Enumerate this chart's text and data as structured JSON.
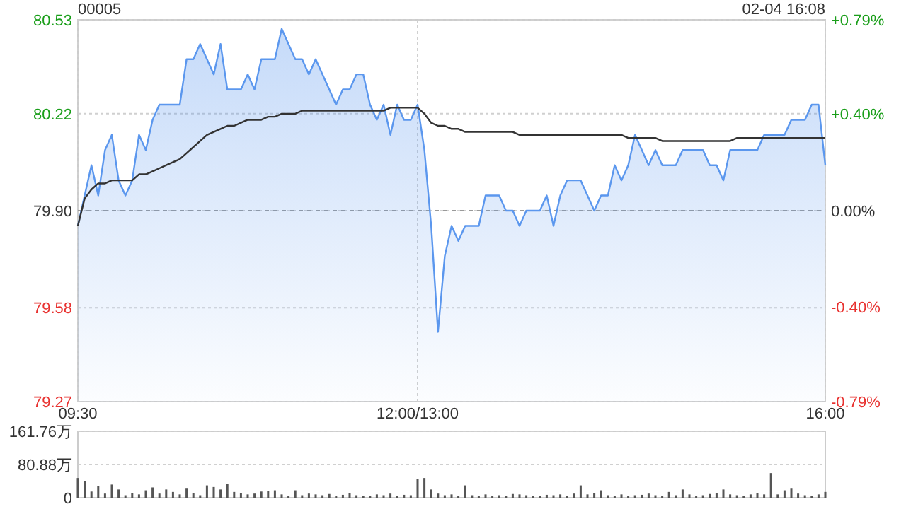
{
  "chart_data": [
    {
      "type": "area",
      "title": "00005",
      "annotations": [
        "02-04 16:08"
      ],
      "categories": [
        "09:30",
        null,
        null,
        null,
        null,
        null,
        null,
        null,
        null,
        null,
        null,
        null,
        null,
        null,
        null,
        null,
        null,
        null,
        null,
        null,
        null,
        null,
        null,
        null,
        null,
        null,
        null,
        null,
        null,
        null,
        null,
        null,
        null,
        null,
        null,
        null,
        null,
        null,
        null,
        null,
        null,
        null,
        null,
        null,
        null,
        null,
        null,
        null,
        null,
        null,
        "12:00/13:00",
        null,
        null,
        null,
        null,
        null,
        null,
        null,
        null,
        null,
        null,
        null,
        null,
        null,
        null,
        null,
        null,
        null,
        null,
        null,
        null,
        null,
        null,
        null,
        null,
        null,
        null,
        null,
        null,
        null,
        null,
        null,
        null,
        null,
        null,
        null,
        null,
        null,
        null,
        null,
        null,
        null,
        null,
        null,
        null,
        null,
        null,
        null,
        null,
        null,
        null,
        null,
        null,
        null,
        null,
        null,
        null,
        null,
        null,
        null,
        "16:00"
      ],
      "ylim": [
        79.27,
        80.53
      ],
      "yticks": [
        79.27,
        79.58,
        {
          "value": 79.9,
          "label": "79.90"
        },
        80.22,
        80.53
      ],
      "y2lim": [
        -0.79,
        0.79
      ],
      "y2ticks": [
        {
          "value": -0.79,
          "label": "-0.79%"
        },
        {
          "value": -0.4,
          "label": "-0.40%"
        },
        {
          "value": 0,
          "label": "0.00%"
        },
        {
          "value": 0.4,
          "label": "+0.40%"
        },
        {
          "value": 0.79,
          "label": "+0.79%"
        }
      ],
      "grid": true,
      "marker": "none",
      "ref_lines": [
        {
          "axis": "y",
          "value": 79.9,
          "color": "#999999",
          "line_style": "dashed"
        }
      ],
      "series": [
        {
          "color": "#5b97ee",
          "values": [
            79.85,
            79.95,
            80.05,
            79.95,
            80.1,
            80.15,
            80.0,
            79.95,
            80.0,
            80.15,
            80.1,
            80.2,
            80.25,
            80.25,
            80.25,
            80.25,
            80.4,
            80.4,
            80.45,
            80.4,
            80.35,
            80.45,
            80.3,
            80.3,
            80.3,
            80.35,
            80.3,
            80.4,
            80.4,
            80.4,
            80.5,
            80.45,
            80.4,
            80.4,
            80.35,
            80.4,
            80.35,
            80.3,
            80.25,
            80.3,
            80.3,
            80.35,
            80.35,
            80.25,
            80.2,
            80.25,
            80.15,
            80.25,
            80.2,
            80.2,
            80.25,
            80.1,
            79.85,
            79.5,
            79.75,
            79.85,
            79.8,
            79.85,
            79.85,
            79.85,
            79.95,
            79.95,
            79.95,
            79.9,
            79.9,
            79.85,
            79.9,
            79.9,
            79.9,
            79.95,
            79.85,
            79.95,
            80.0,
            80.0,
            80.0,
            79.95,
            79.9,
            79.95,
            79.95,
            80.05,
            80.0,
            80.05,
            80.15,
            80.1,
            80.05,
            80.1,
            80.05,
            80.05,
            80.05,
            80.1,
            80.1,
            80.1,
            80.1,
            80.05,
            80.05,
            80.0,
            80.1,
            80.1,
            80.1,
            80.1,
            80.1,
            80.15,
            80.15,
            80.15,
            80.15,
            80.2,
            80.2,
            80.2,
            80.25,
            80.25,
            80.05
          ]
        },
        {
          "type": "line",
          "color": "#333333",
          "values": [
            79.85,
            79.94,
            79.97,
            79.99,
            79.99,
            80.0,
            80.0,
            80.0,
            80.0,
            80.02,
            80.02,
            80.03,
            80.04,
            80.05,
            80.06,
            80.07,
            80.09,
            80.11,
            80.13,
            80.15,
            80.16,
            80.17,
            80.18,
            80.18,
            80.19,
            80.2,
            80.2,
            80.2,
            80.21,
            80.21,
            80.22,
            80.22,
            80.22,
            80.23,
            80.23,
            80.23,
            80.23,
            80.23,
            80.23,
            80.23,
            80.23,
            80.23,
            80.23,
            80.23,
            80.23,
            80.23,
            80.24,
            80.24,
            80.24,
            80.24,
            80.24,
            80.22,
            80.19,
            80.18,
            80.18,
            80.17,
            80.17,
            80.16,
            80.16,
            80.16,
            80.16,
            80.16,
            80.16,
            80.16,
            80.16,
            80.15,
            80.15,
            80.15,
            80.15,
            80.15,
            80.15,
            80.15,
            80.15,
            80.15,
            80.15,
            80.15,
            80.15,
            80.15,
            80.15,
            80.15,
            80.15,
            80.14,
            80.14,
            80.14,
            80.14,
            80.14,
            80.13,
            80.13,
            80.13,
            80.13,
            80.13,
            80.13,
            80.13,
            80.13,
            80.13,
            80.13,
            80.13,
            80.14,
            80.14,
            80.14,
            80.14,
            80.14,
            80.14,
            80.14,
            80.14,
            80.14,
            80.14,
            80.14,
            80.14,
            80.14,
            80.14
          ]
        }
      ]
    },
    {
      "type": "bar",
      "categories": [
        null,
        null,
        null,
        null,
        null,
        null,
        null,
        null,
        null,
        null,
        null,
        null,
        null,
        null,
        null,
        null,
        null,
        null,
        null,
        null,
        null,
        null,
        null,
        null,
        null,
        null,
        null,
        null,
        null,
        null,
        null,
        null,
        null,
        null,
        null,
        null,
        null,
        null,
        null,
        null,
        null,
        null,
        null,
        null,
        null,
        null,
        null,
        null,
        null,
        null,
        null,
        null,
        null,
        null,
        null,
        null,
        null,
        null,
        null,
        null,
        null,
        null,
        null,
        null,
        null,
        null,
        null,
        null,
        null,
        null,
        null,
        null,
        null,
        null,
        null,
        null,
        null,
        null,
        null,
        null,
        null,
        null,
        null,
        null,
        null,
        null,
        null,
        null,
        null,
        null,
        null,
        null,
        null,
        null,
        null,
        null,
        null,
        null,
        null,
        null,
        null,
        null,
        null,
        null,
        null,
        null,
        null,
        null,
        null,
        null,
        null
      ],
      "ylim": [
        0,
        161.76
      ],
      "yticks": [
        0,
        {
          "value": 80.88,
          "label": "80.88万"
        },
        {
          "value": 161.76,
          "label": "161.76万"
        }
      ],
      "grid": "y",
      "tick_labels": "y",
      "series": [
        {
          "color": "#555555",
          "values": [
            48,
            40,
            15,
            28,
            10,
            32,
            20,
            6,
            12,
            8,
            18,
            25,
            10,
            20,
            14,
            8,
            22,
            12,
            6,
            30,
            26,
            20,
            34,
            14,
            12,
            8,
            10,
            15,
            16,
            18,
            8,
            5,
            18,
            6,
            10,
            8,
            6,
            9,
            5,
            7,
            12,
            6,
            5,
            4,
            8,
            6,
            10,
            5,
            7,
            6,
            45,
            48,
            20,
            10,
            6,
            8,
            4,
            30,
            6,
            5,
            8,
            4,
            6,
            5,
            9,
            8,
            6,
            4,
            5,
            7,
            6,
            8,
            5,
            10,
            30,
            8,
            12,
            18,
            6,
            4,
            8,
            5,
            6,
            7,
            10,
            6,
            5,
            14,
            6,
            20,
            8,
            5,
            6,
            9,
            12,
            20,
            8,
            6,
            4,
            8,
            12,
            8,
            60,
            8,
            18,
            22,
            10,
            6,
            5,
            8,
            14
          ]
        }
      ]
    }
  ]
}
